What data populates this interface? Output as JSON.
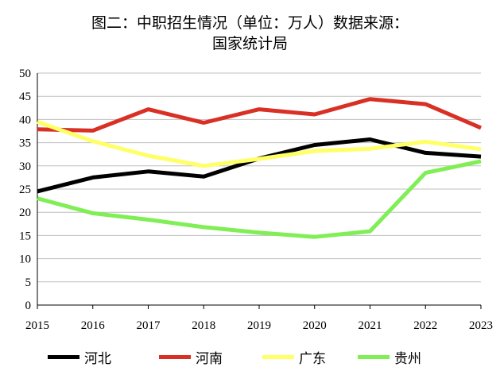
{
  "chart_data": {
    "type": "line",
    "title_line1": "图二：中职招生情况（单位：万人）数据来源：",
    "title_line2": "国家统计局",
    "x": [
      "2015",
      "2016",
      "2017",
      "2018",
      "2019",
      "2020",
      "2021",
      "2022",
      "2023"
    ],
    "ylim": [
      0,
      50
    ],
    "yticks": [
      "0",
      "5",
      "10",
      "15",
      "20",
      "25",
      "30",
      "35",
      "40",
      "45",
      "50"
    ],
    "grid": true,
    "legend_position": "bottom",
    "series": [
      {
        "name": "河北",
        "color": "#000000",
        "values": [
          24.5,
          27.5,
          28.8,
          27.7,
          31.6,
          34.5,
          35.7,
          32.8,
          32.0
        ]
      },
      {
        "name": "河南",
        "color": "#d93025",
        "values": [
          37.9,
          37.6,
          42.2,
          39.3,
          42.2,
          41.1,
          44.4,
          43.3,
          38.2
        ]
      },
      {
        "name": "广东",
        "color": "#ffff66",
        "values": [
          39.5,
          35.3,
          32.2,
          30.0,
          31.5,
          33.2,
          33.7,
          35.2,
          33.6
        ]
      },
      {
        "name": "贵州",
        "color": "#80ee55",
        "values": [
          23.0,
          19.8,
          18.4,
          16.8,
          15.6,
          14.7,
          15.9,
          28.5,
          31.0
        ]
      }
    ]
  }
}
